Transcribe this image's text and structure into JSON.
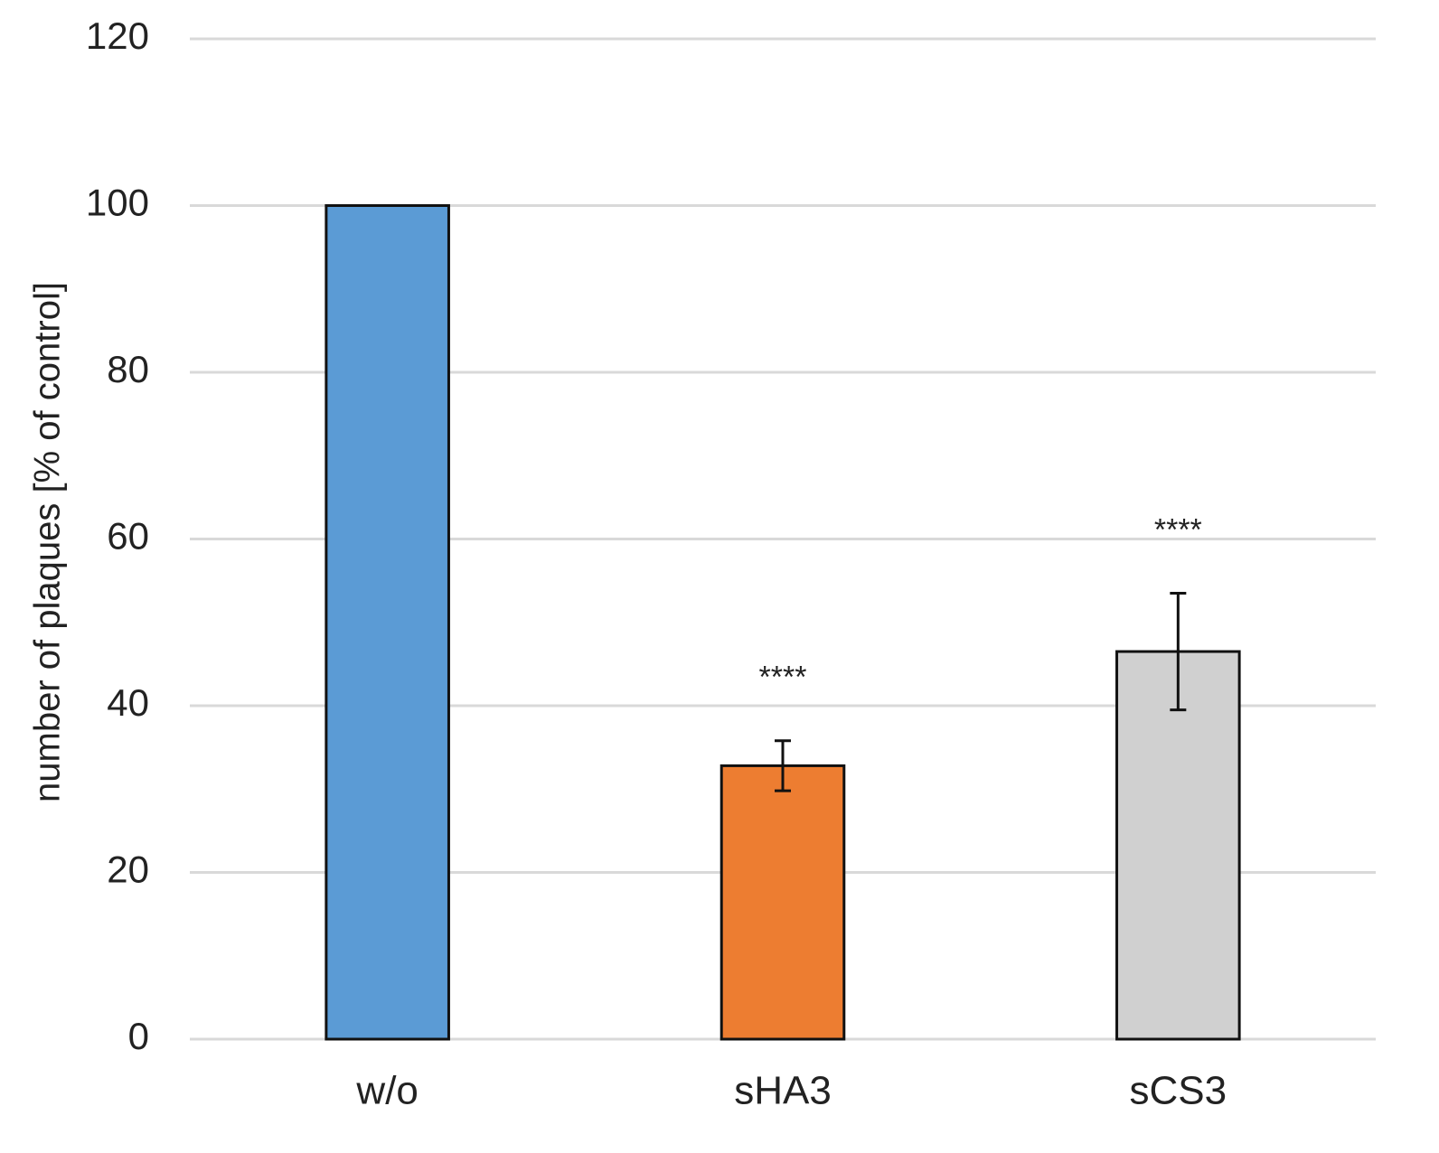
{
  "chart_data": {
    "type": "bar",
    "y_label": "number of plaques [% of control]",
    "categories": [
      "w/o",
      "sHA3",
      "sCS3"
    ],
    "values": [
      100,
      32.8,
      46.5
    ],
    "errors": [
      null,
      3,
      7
    ],
    "colors": [
      "#5b9bd5",
      "#ed7d31",
      "#d0d0d0"
    ],
    "annotations": [
      null,
      "****",
      "****"
    ],
    "ylim": [
      0,
      120
    ],
    "yticks": [
      0,
      20,
      40,
      60,
      80,
      100,
      120
    ],
    "grid": true
  }
}
